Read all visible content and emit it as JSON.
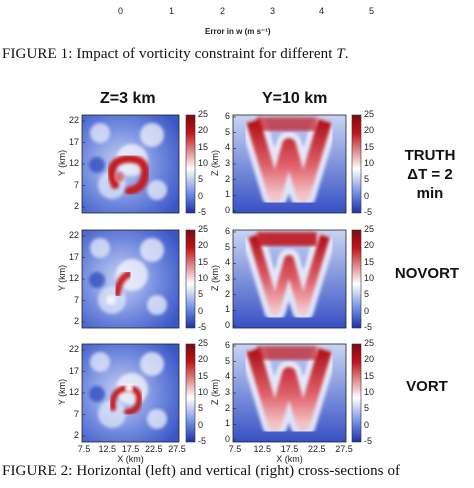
{
  "top_axis": {
    "ticks": [
      "0",
      "1",
      "2",
      "3",
      "4",
      "5"
    ],
    "label": "Error in w (m s⁻¹)"
  },
  "figure1": {
    "caption_prefix": "FIGURE 1:",
    "caption_text": "Impact of vorticity constraint for different",
    "caption_var": "T",
    "caption_end": "."
  },
  "columns": {
    "left_title": "Z=3 km",
    "right_title": "Y=10 km"
  },
  "rows": [
    {
      "label_lines": [
        "TRUTH",
        "ΔT = 2",
        "min"
      ]
    },
    {
      "label_lines": [
        "NOVORT"
      ]
    },
    {
      "label_lines": [
        "VORT"
      ]
    }
  ],
  "left_axes": {
    "ylabel": "Y (km)",
    "xlabel": "X (km)",
    "yticks": [
      "22",
      "17",
      "12",
      "7",
      "2"
    ],
    "xticks": [
      "7.5",
      "12.5",
      "17.5",
      "22.5",
      "27.5"
    ]
  },
  "right_axes": {
    "ylabel": "Z (km)",
    "xlabel": "X (km)",
    "yticks": [
      "6",
      "5",
      "4",
      "3",
      "2",
      "1",
      "0"
    ],
    "xticks": [
      "7.5",
      "12.5",
      "17.5",
      "22.5",
      "27.5"
    ]
  },
  "colorbar": {
    "ticks": [
      "25",
      "20",
      "15",
      "10",
      "5",
      "0",
      "-5"
    ],
    "colors": {
      "high": "#c0141b",
      "mid": "#ffffff",
      "low": "#1f2fa8"
    }
  },
  "figure2": {
    "caption": "FIGURE 2:  Horizontal (left) and vertical (right) cross-sections of"
  }
}
